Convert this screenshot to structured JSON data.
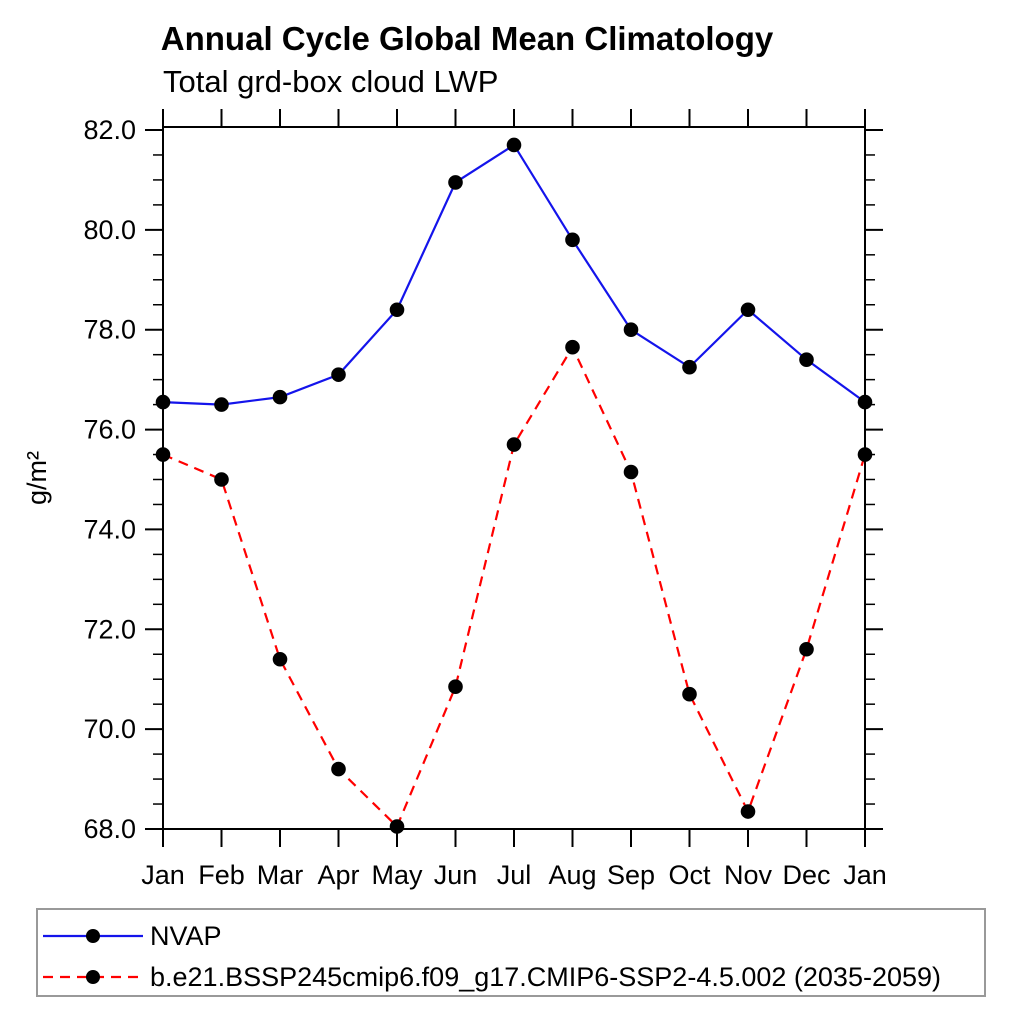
{
  "chart_data": {
    "type": "line",
    "title": "Annual Cycle Global Mean Climatology",
    "subtitle": "Total grd-box cloud LWP",
    "ylabel": "g/m²",
    "xlabel": "",
    "categories": [
      "Jan",
      "Feb",
      "Mar",
      "Apr",
      "May",
      "Jun",
      "Jul",
      "Aug",
      "Sep",
      "Oct",
      "Nov",
      "Dec",
      "Jan"
    ],
    "ylim": [
      68.0,
      82.06
    ],
    "yticks": [
      68,
      70,
      72,
      74,
      76,
      78,
      80,
      82
    ],
    "ytick_labels": [
      "68.0",
      "70.0",
      "72.0",
      "74.0",
      "76.0",
      "78.0",
      "80.0",
      "82.0"
    ],
    "yminor_step": 0.5,
    "grid": false,
    "legend_position": "bottom-left-box",
    "frame_color": "#000000",
    "legend_border_color": "#999999",
    "series": [
      {
        "name": "NVAP",
        "color": "#1414eb",
        "dash": null,
        "marker": "circle",
        "marker_color": "#000000",
        "values": [
          76.55,
          76.5,
          76.65,
          77.1,
          78.4,
          80.95,
          81.7,
          79.8,
          78.0,
          77.25,
          78.4,
          77.4,
          76.55
        ]
      },
      {
        "name": "b.e21.BSSP245cmip6.f09_g17.CMIP6-SSP2-4.5.002 (2035-2059)",
        "color": "#ff0000",
        "dash": "10 7",
        "marker": "circle",
        "marker_color": "#000000",
        "values": [
          75.5,
          75.0,
          71.4,
          69.2,
          68.05,
          70.85,
          75.7,
          77.65,
          75.15,
          70.7,
          68.35,
          71.6,
          75.5
        ]
      }
    ]
  }
}
